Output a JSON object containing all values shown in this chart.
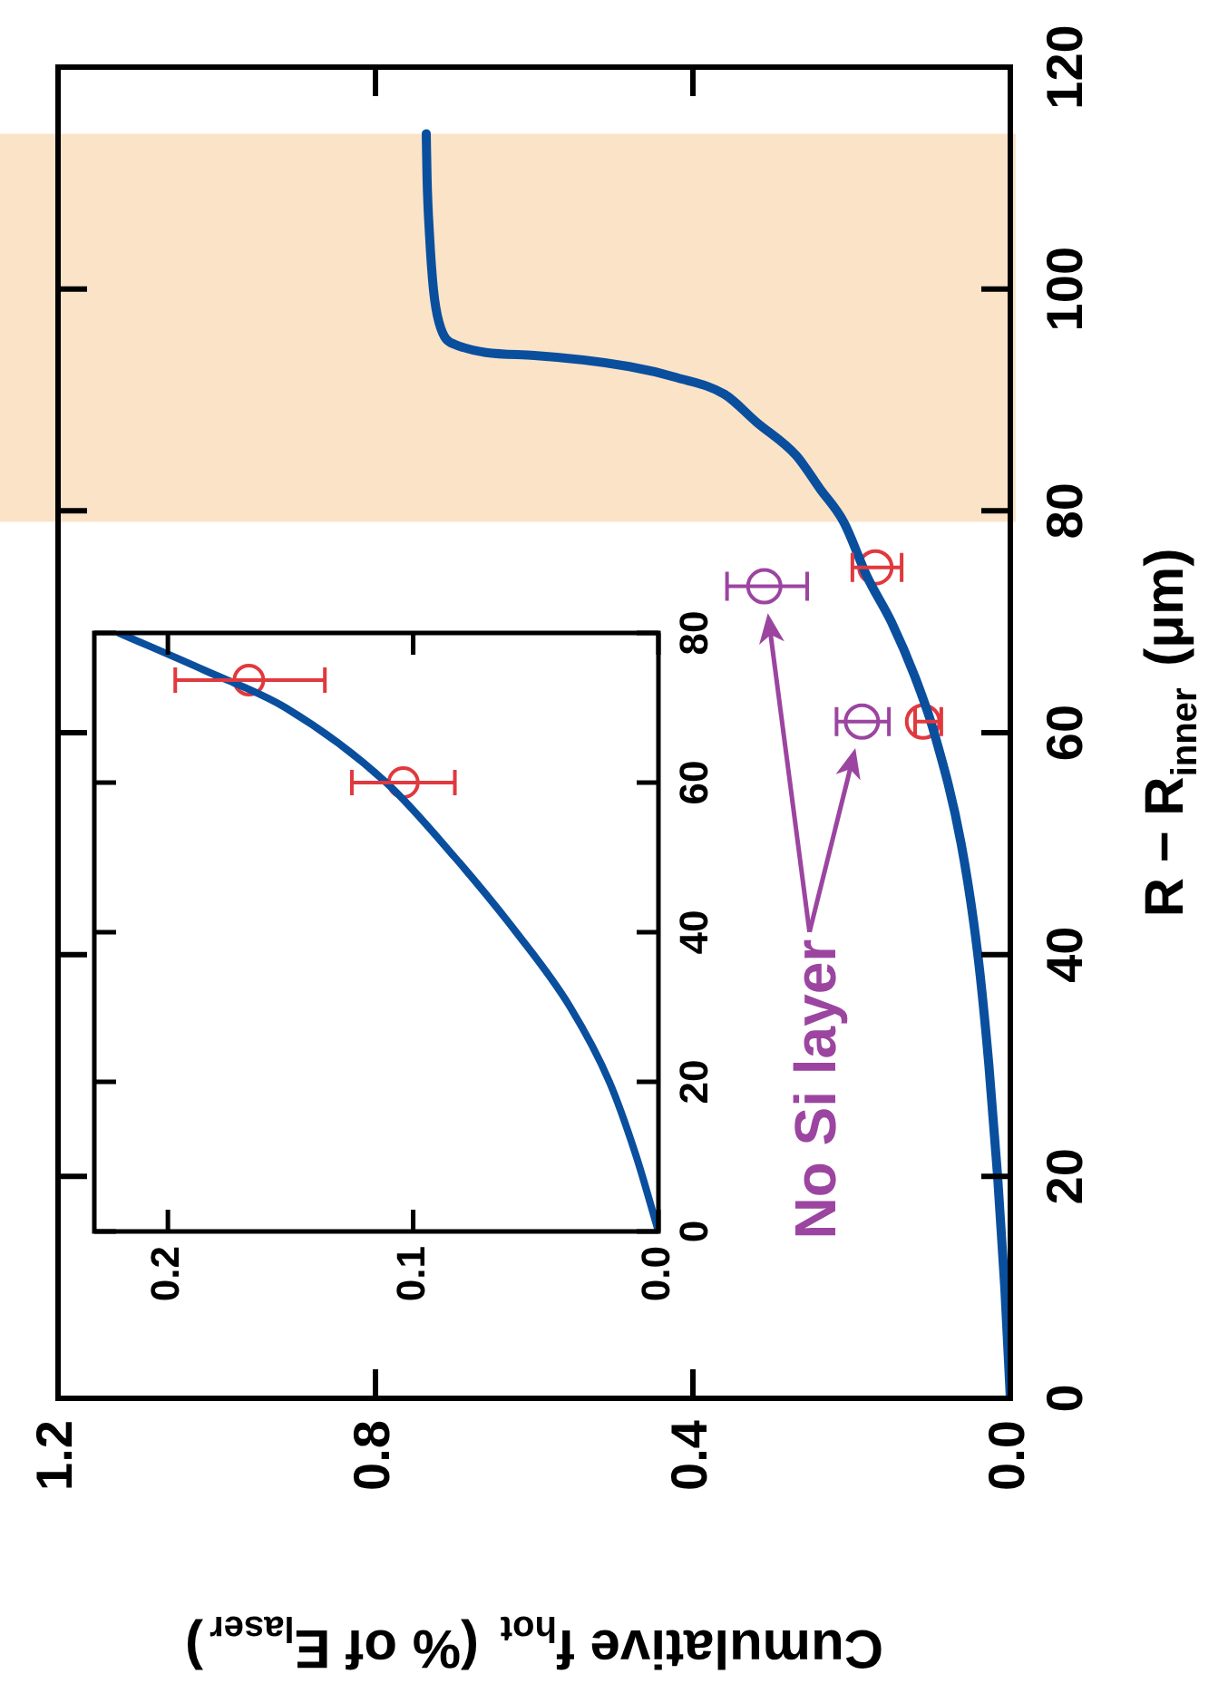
{
  "chart_data": [
    {
      "type": "line",
      "xlabel": "Cumulative f$_{hot}$ (% of E$_{laser}$)",
      "ylabel": "R − R$_{inner}$ (μm)",
      "xlim": [
        1.2,
        0
      ],
      "ylim": [
        0,
        120
      ],
      "xticks": [
        {
          "value": 0,
          "label": "0.0"
        },
        {
          "value": 0.4,
          "label": "0.4"
        },
        {
          "value": 0.8,
          "label": "0.8"
        },
        {
          "value": 1.2,
          "label": "1.2"
        }
      ],
      "yticks": [
        0,
        20,
        40,
        60,
        80,
        100,
        120
      ],
      "bands": [
        {
          "axis": "y",
          "from": 79,
          "to": 114,
          "color": "#fbe3c8"
        }
      ],
      "annotations": [
        "No Si layer"
      ],
      "series": [
        {
          "color": "#0a4f9e",
          "marker": "none",
          "x": [
            0,
            0.007,
            0.016,
            0.027,
            0.041,
            0.062,
            0.096,
            0.12,
            0.15,
            0.18,
            0.21,
            0.24,
            0.27,
            0.32,
            0.36,
            0.42,
            0.48,
            0.6,
            0.7,
            0.72,
            0.727,
            0.732,
            0.735,
            0.736
          ],
          "values": [
            0,
            10,
            20,
            30,
            40,
            50,
            60,
            65,
            70,
            74,
            79,
            82,
            85,
            88,
            90.5,
            92,
            93,
            94,
            95,
            97,
            100,
            105,
            110,
            114
          ]
        },
        {
          "type": "scatter",
          "color": "#e0393e",
          "marker": "circle",
          "x": [
            0.17,
            0.11
          ],
          "values": [
            74.9,
            61
          ],
          "xerrors": [
            [
              0.137,
              0.199
            ],
            [
              0.087,
              0.12
            ]
          ]
        },
        {
          "type": "scatter",
          "color": "#9b45a0",
          "marker": "circle",
          "x": [
            0.31,
            0.187
          ],
          "values": [
            73.2,
            61
          ],
          "xerrors": [
            [
              0.256,
              0.357
            ],
            [
              0.153,
              0.219
            ]
          ]
        }
      ]
    },
    {
      "type": "line",
      "xlim": [
        0.23,
        0
      ],
      "ylim": [
        0,
        80
      ],
      "xticks": [
        {
          "value": 0,
          "label": "0.0"
        },
        {
          "value": 0.1,
          "label": "0.1"
        },
        {
          "value": 0.2,
          "label": "0.2"
        }
      ],
      "yticks": [
        0,
        20,
        40,
        60,
        80
      ],
      "series": [
        {
          "color": "#0a4f9e",
          "marker": "none",
          "x": [
            0,
            0.009,
            0.02,
            0.036,
            0.058,
            0.083,
            0.111,
            0.152,
            0.185,
            0.22
          ],
          "values": [
            0,
            10,
            20,
            30,
            40,
            50,
            60,
            70,
            75,
            80
          ]
        },
        {
          "type": "scatter",
          "color": "#e0393e",
          "marker": "circle",
          "x": [
            0.167,
            0.104
          ],
          "values": [
            73.7,
            60
          ],
          "xerrors": [
            [
              0.136,
              0.197
            ],
            [
              0.083,
              0.125
            ]
          ]
        }
      ]
    }
  ]
}
